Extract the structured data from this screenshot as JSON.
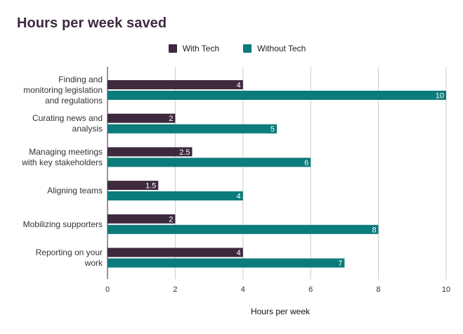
{
  "chart_data": {
    "type": "bar",
    "orientation": "horizontal",
    "title": "Hours per week saved",
    "xlabel": "Hours per week",
    "ylabel": "",
    "xlim": [
      0,
      10
    ],
    "xticks": [
      0,
      2,
      4,
      6,
      8,
      10
    ],
    "grid": true,
    "legend_position": "top",
    "categories": [
      "Finding and monitoring legislation and regulations",
      "Curating news and analysis",
      "Managing meetings with key stakeholders",
      "Aligning teams",
      "Mobilizing supporters",
      "Reporting on your work"
    ],
    "category_label_lines": [
      [
        "Finding and",
        "monitoring legislation",
        "and regulations"
      ],
      [
        "Curating news and",
        "analysis"
      ],
      [
        "Managing meetings",
        "with key stakeholders"
      ],
      [
        "Aligning teams"
      ],
      [
        "Mobilizing supporters"
      ],
      [
        "Reporting on your",
        "work"
      ]
    ],
    "series": [
      {
        "name": "With Tech",
        "color": "#3d2a3f",
        "values": [
          4,
          2,
          2.5,
          1.5,
          2,
          4
        ]
      },
      {
        "name": "Without Tech",
        "color": "#0c7b7b",
        "values": [
          10,
          5,
          6,
          4,
          8,
          7
        ]
      }
    ]
  }
}
